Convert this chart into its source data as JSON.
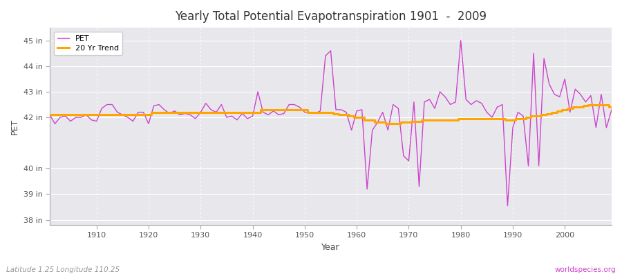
{
  "title": "Yearly Total Potential Evapotranspiration 1901  -  2009",
  "xlabel": "Year",
  "ylabel": "PET",
  "lat_lon_label": "Latitude 1.25 Longitude 110.25",
  "source_label": "worldspecies.org",
  "pet_color": "#CC44CC",
  "trend_color": "#FFA500",
  "background_color": "#E8E8EC",
  "fig_background": "#FFFFFF",
  "ylim": [
    37.8,
    45.5
  ],
  "yticks": [
    38,
    39,
    40,
    42,
    43,
    44,
    45
  ],
  "ytick_labels": [
    "38 in",
    "39 in",
    "40 in",
    "42 in",
    "43 in",
    "44 in",
    "45 in"
  ],
  "xlim": [
    1901,
    2009
  ],
  "xticks": [
    1910,
    1920,
    1930,
    1940,
    1950,
    1960,
    1970,
    1980,
    1990,
    2000
  ],
  "years": [
    1901,
    1902,
    1903,
    1904,
    1905,
    1906,
    1907,
    1908,
    1909,
    1910,
    1911,
    1912,
    1913,
    1914,
    1915,
    1916,
    1917,
    1918,
    1919,
    1920,
    1921,
    1922,
    1923,
    1924,
    1925,
    1926,
    1927,
    1928,
    1929,
    1930,
    1931,
    1932,
    1933,
    1934,
    1935,
    1936,
    1937,
    1938,
    1939,
    1940,
    1941,
    1942,
    1943,
    1944,
    1945,
    1946,
    1947,
    1948,
    1949,
    1950,
    1951,
    1952,
    1953,
    1954,
    1955,
    1956,
    1957,
    1958,
    1959,
    1960,
    1961,
    1962,
    1963,
    1964,
    1965,
    1966,
    1967,
    1968,
    1969,
    1970,
    1971,
    1972,
    1973,
    1974,
    1975,
    1976,
    1977,
    1978,
    1979,
    1980,
    1981,
    1982,
    1983,
    1984,
    1985,
    1986,
    1987,
    1988,
    1989,
    1990,
    1991,
    1992,
    1993,
    1994,
    1995,
    1996,
    1997,
    1998,
    1999,
    2000,
    2001,
    2002,
    2003,
    2004,
    2005,
    2006,
    2007,
    2008,
    2009
  ],
  "pet_values": [
    42.1,
    41.75,
    42.0,
    42.05,
    41.85,
    42.0,
    42.0,
    42.1,
    41.9,
    41.85,
    42.35,
    42.5,
    42.5,
    42.2,
    42.1,
    42.0,
    41.85,
    42.2,
    42.2,
    41.75,
    42.45,
    42.5,
    42.3,
    42.15,
    42.25,
    42.1,
    42.15,
    42.1,
    41.95,
    42.2,
    42.55,
    42.3,
    42.2,
    42.5,
    42.0,
    42.05,
    41.9,
    42.15,
    41.95,
    42.05,
    43.0,
    42.2,
    42.1,
    42.25,
    42.1,
    42.15,
    42.5,
    42.5,
    42.4,
    42.2,
    42.2,
    42.15,
    42.25,
    44.4,
    44.6,
    42.3,
    42.3,
    42.2,
    41.5,
    42.25,
    42.3,
    39.2,
    41.5,
    41.8,
    42.2,
    41.5,
    42.5,
    42.35,
    40.5,
    40.3,
    42.6,
    39.3,
    42.6,
    42.7,
    42.35,
    43.0,
    42.8,
    42.5,
    42.6,
    45.0,
    42.7,
    42.5,
    42.65,
    42.55,
    42.2,
    42.0,
    42.4,
    42.5,
    38.55,
    41.6,
    42.2,
    42.05,
    40.1,
    44.5,
    40.1,
    44.3,
    43.3,
    42.9,
    42.8,
    43.5,
    42.2,
    43.1,
    42.9,
    42.6,
    42.85,
    41.6,
    42.9,
    41.6,
    42.3
  ],
  "trend_values": [
    42.1,
    42.1,
    42.1,
    42.1,
    42.1,
    42.1,
    42.1,
    42.1,
    42.1,
    42.1,
    42.1,
    42.1,
    42.1,
    42.1,
    42.1,
    42.1,
    42.1,
    42.1,
    42.1,
    42.1,
    42.2,
    42.2,
    42.2,
    42.2,
    42.2,
    42.2,
    42.2,
    42.2,
    42.2,
    42.2,
    42.2,
    42.2,
    42.2,
    42.2,
    42.2,
    42.2,
    42.2,
    42.2,
    42.2,
    42.2,
    42.2,
    42.3,
    42.3,
    42.3,
    42.3,
    42.3,
    42.3,
    42.3,
    42.3,
    42.3,
    42.2,
    42.2,
    42.2,
    42.2,
    42.2,
    42.15,
    42.1,
    42.1,
    42.05,
    42.0,
    42.0,
    41.9,
    41.9,
    41.8,
    41.8,
    41.75,
    41.75,
    41.75,
    41.8,
    41.8,
    41.85,
    41.85,
    41.9,
    41.9,
    41.9,
    41.9,
    41.9,
    41.9,
    41.9,
    41.95,
    41.95,
    41.95,
    41.95,
    41.95,
    41.95,
    41.95,
    41.95,
    41.95,
    41.9,
    41.9,
    41.95,
    41.95,
    42.0,
    42.05,
    42.05,
    42.1,
    42.15,
    42.2,
    42.25,
    42.3,
    42.35,
    42.4,
    42.4,
    42.45,
    42.5,
    42.5,
    42.5,
    42.5,
    42.4
  ]
}
